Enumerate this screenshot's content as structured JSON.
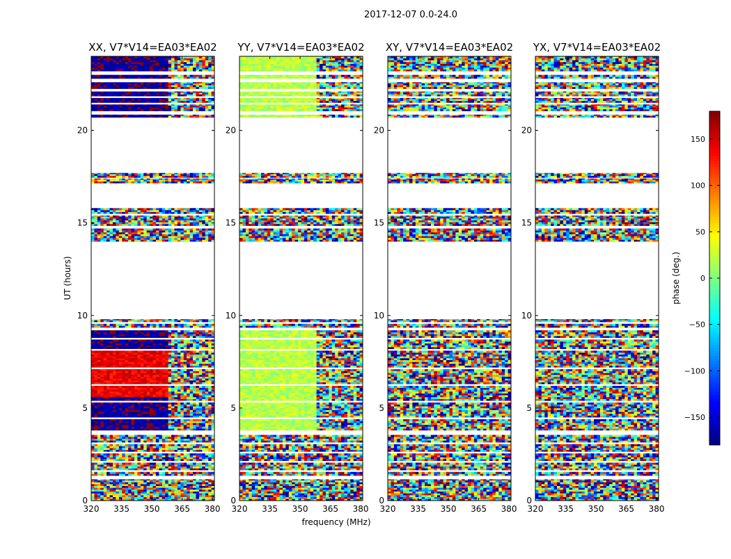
{
  "chart_data": {
    "type": "heatmap",
    "suptitle": "2017-12-07 0.0-24.0",
    "xlabel": "frequency (MHz)",
    "ylabel": "UT (hours)",
    "xlim": [
      320,
      381
    ],
    "ylim": [
      0,
      24
    ],
    "xticks": [
      320,
      335,
      350,
      365,
      380
    ],
    "yticks": [
      0,
      5,
      10,
      15,
      20
    ],
    "panels": [
      {
        "title": "XX, V7*V14=EA03*EA02",
        "polarization": "XX",
        "mean_phase_low_freq": -170,
        "mean_phase_low_freq_alt": 140
      },
      {
        "title": "YY, V7*V14=EA03*EA02",
        "polarization": "YY",
        "mean_phase_low_freq": 20,
        "mean_phase_low_freq_alt": 30
      },
      {
        "title": "XY, V7*V14=EA03*EA02",
        "polarization": "XY",
        "mean_phase_low_freq": null,
        "mean_phase_low_freq_alt": null
      },
      {
        "title": "YX, V7*V14=EA03*EA02",
        "polarization": "YX",
        "mean_phase_low_freq": null,
        "mean_phase_low_freq_alt": null
      }
    ],
    "data_time_ranges_hours": [
      [
        0.0,
        1.15
      ],
      [
        1.35,
        1.55
      ],
      [
        1.65,
        2.05
      ],
      [
        2.15,
        2.55
      ],
      [
        2.65,
        3.05
      ],
      [
        3.15,
        3.55
      ],
      [
        3.8,
        4.4
      ],
      [
        4.5,
        5.3
      ],
      [
        5.4,
        6.2
      ],
      [
        6.3,
        7.1
      ],
      [
        7.2,
        8.1
      ],
      [
        8.2,
        8.7
      ],
      [
        8.8,
        9.2
      ],
      [
        9.35,
        9.55
      ],
      [
        9.65,
        9.8
      ],
      [
        14.0,
        14.7
      ],
      [
        14.85,
        15.4
      ],
      [
        15.5,
        15.8
      ],
      [
        17.15,
        17.4
      ],
      [
        17.45,
        17.7
      ],
      [
        20.7,
        20.85
      ],
      [
        21.05,
        21.4
      ],
      [
        21.5,
        21.75
      ],
      [
        21.85,
        22.1
      ],
      [
        22.25,
        22.6
      ],
      [
        22.8,
        23.0
      ],
      [
        23.2,
        24.0
      ]
    ],
    "colorbar": {
      "label": "phase (deg.)",
      "vmin": -180,
      "vmax": 180,
      "ticks": [
        150,
        100,
        50,
        0,
        -50,
        -100,
        -150
      ],
      "colormap": "jet"
    }
  }
}
